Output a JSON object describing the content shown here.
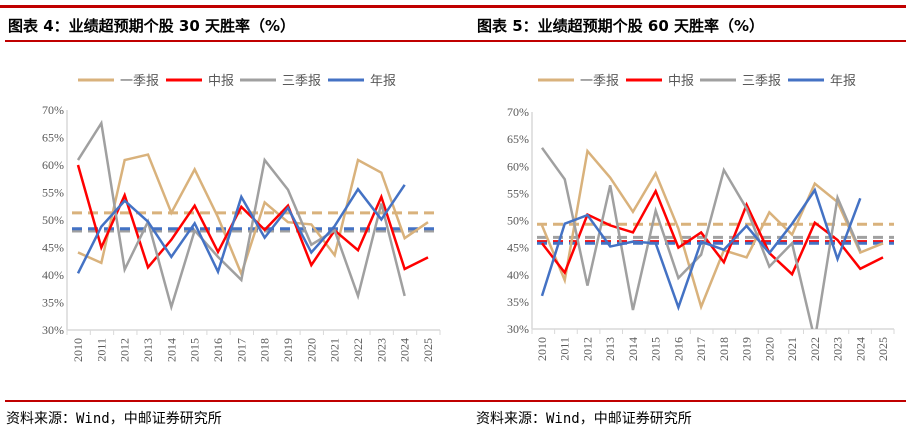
{
  "titles": [
    "图表 4：业绩超预期个股 30 天胜率（%）",
    "图表 5：业绩超预期个股 60 天胜率（%）"
  ],
  "source": "资料来源：Wind，中邮证券研究所",
  "chart_data": [
    {
      "type": "line",
      "title": "图表 4：业绩超预期个股 30 天胜率（%）",
      "ylim": [
        30,
        70
      ],
      "yticks": [
        "30%",
        "35%",
        "40%",
        "45%",
        "50%",
        "55%",
        "60%",
        "65%",
        "70%"
      ],
      "legend": "top",
      "categories": [
        "2010",
        "2011",
        "2012",
        "2013",
        "2014",
        "2015",
        "2016",
        "2017",
        "2018",
        "2019",
        "2020",
        "2021",
        "2022",
        "2023",
        "2024",
        "2025"
      ],
      "series": [
        {
          "name": "一季报",
          "color": "#d9b27c",
          "values": [
            44.1,
            42.2,
            60.9,
            61.9,
            51.3,
            59.2,
            50.5,
            40.2,
            53.2,
            49.6,
            49.2,
            43.6,
            60.9,
            58.6,
            46.7,
            49.6
          ],
          "mean": 51.3
        },
        {
          "name": "中报",
          "color": "#ff0000",
          "values": [
            60.0,
            45.0,
            54.5,
            41.4,
            46.4,
            52.6,
            44.2,
            52.4,
            48.2,
            52.6,
            41.8,
            48.1,
            44.5,
            54.2,
            41.1,
            43.2
          ],
          "mean": 48.2
        },
        {
          "name": "三季报",
          "color": "#a0a0a0",
          "values": [
            60.9,
            67.6,
            41.0,
            49.7,
            34.2,
            48.1,
            43.3,
            39.1,
            60.9,
            55.5,
            45.5,
            48.1,
            36.2,
            53.0,
            36.2,
            null
          ],
          "mean": 48.0
        },
        {
          "name": "年报",
          "color": "#4472c4",
          "values": [
            40.3,
            48.8,
            53.5,
            49.7,
            43.3,
            49.4,
            40.6,
            54.2,
            46.8,
            52.2,
            44.1,
            48.9,
            55.6,
            50.1,
            56.4,
            null
          ],
          "mean": 48.4
        }
      ]
    },
    {
      "type": "line",
      "title": "图表 5：业绩超预期个股 60 天胜率（%）",
      "ylim": [
        30,
        70
      ],
      "yticks": [
        "30%",
        "35%",
        "40%",
        "45%",
        "50%",
        "55%",
        "60%",
        "65%",
        "70%"
      ],
      "legend": "top",
      "categories": [
        "2010",
        "2011",
        "2012",
        "2013",
        "2014",
        "2015",
        "2016",
        "2017",
        "2018",
        "2019",
        "2020",
        "2021",
        "2022",
        "2023",
        "2024",
        "2025"
      ],
      "series": [
        {
          "name": "一季报",
          "color": "#d9b27c",
          "values": [
            49.1,
            39.0,
            62.8,
            57.9,
            51.6,
            58.7,
            48.5,
            34.1,
            44.5,
            43.2,
            51.5,
            47.4,
            56.8,
            53.4,
            44.1,
            45.8
          ],
          "mean": 49.3
        },
        {
          "name": "中报",
          "color": "#ff0000",
          "values": [
            45.8,
            40.4,
            51.1,
            49.1,
            47.8,
            55.4,
            45.0,
            47.8,
            42.3,
            52.9,
            44.0,
            40.1,
            49.6,
            46.4,
            41.1,
            43.2
          ],
          "mean": 46.1
        },
        {
          "name": "三季报",
          "color": "#a0a0a0",
          "values": [
            63.4,
            57.6,
            38.0,
            56.5,
            33.5,
            51.8,
            39.4,
            43.7,
            59.3,
            52.2,
            41.5,
            45.8,
            28.0,
            54.2,
            44.4,
            null
          ],
          "mean": 46.9
        },
        {
          "name": "年报",
          "color": "#4472c4",
          "values": [
            36.1,
            49.4,
            51.0,
            45.2,
            46.1,
            45.8,
            34.0,
            46.1,
            44.6,
            49.0,
            44.0,
            49.4,
            55.6,
            42.9,
            54.1,
            null
          ],
          "mean": 45.8
        }
      ]
    }
  ]
}
